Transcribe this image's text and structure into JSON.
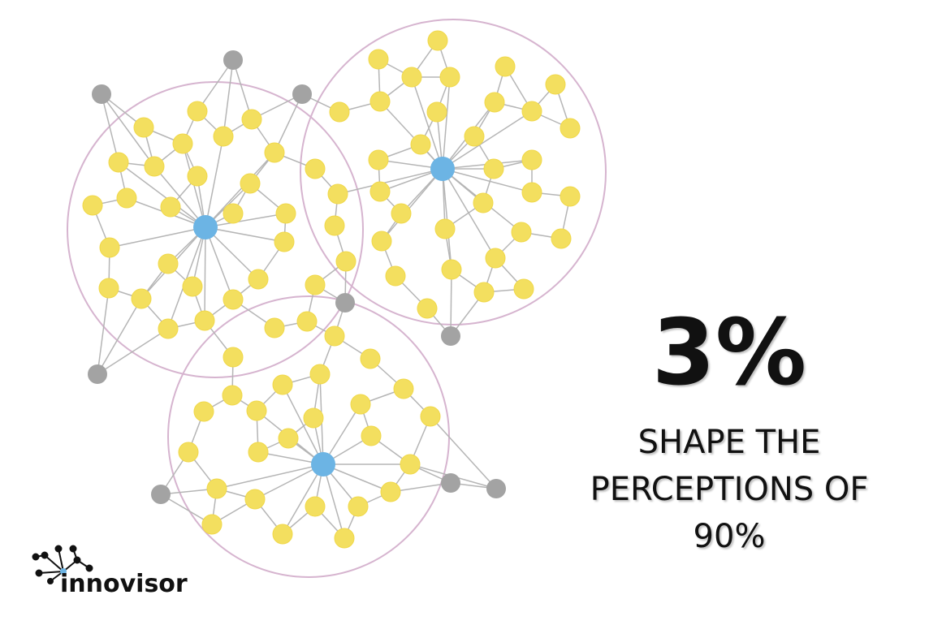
{
  "headline": "3%",
  "caption_lines": [
    "SHAPE THE",
    "PERCEPTIONS OF",
    "90%"
  ],
  "logo": "innovisor"
}
